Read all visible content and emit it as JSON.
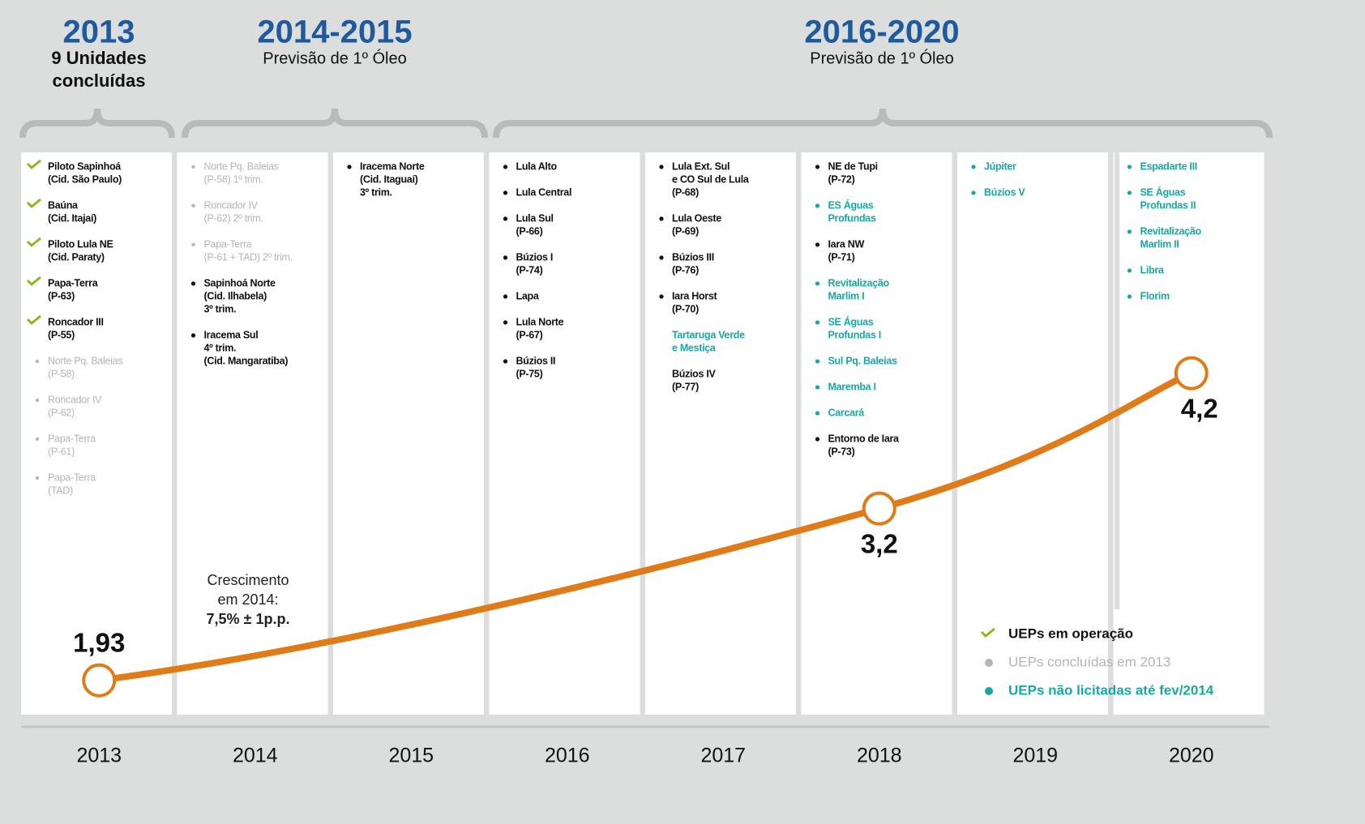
{
  "header": [
    {
      "title": "2013",
      "subtitle": [
        "9 Unidades",
        "concluídas"
      ]
    },
    {
      "title": "2014-2015",
      "subtitle": [
        "Previsão de 1º Óleo"
      ]
    },
    {
      "title": "2016-2020",
      "subtitle": [
        "Previsão de 1º Óleo"
      ]
    }
  ],
  "columns": [
    {
      "items": [
        {
          "lines": [
            "Piloto Sapinhoá",
            "(Cid. São Paulo)"
          ],
          "status": "operation"
        },
        {
          "lines": [
            "Baúna",
            "(Cid. Itajaí)"
          ],
          "status": "operation"
        },
        {
          "lines": [
            "Piloto Lula NE",
            "(Cid. Paraty)"
          ],
          "status": "operation"
        },
        {
          "lines": [
            "Papa-Terra",
            "(P-63)"
          ],
          "status": "operation"
        },
        {
          "lines": [
            "Roncador III",
            "(P-55)"
          ],
          "status": "operation"
        },
        {
          "lines": [
            "Norte Pq. Baleias",
            "(P-58)"
          ],
          "status": "concluded"
        },
        {
          "lines": [
            "Roncador IV",
            "(P-62)"
          ],
          "status": "concluded"
        },
        {
          "lines": [
            "Papa-Terra",
            "(P-61)"
          ],
          "status": "concluded"
        },
        {
          "lines": [
            "Papa-Terra",
            "(TAD)"
          ],
          "status": "concluded"
        }
      ]
    },
    {
      "items": [
        {
          "lines": [
            "Norte Pq. Baleias",
            "(P-58) 1º trim."
          ],
          "status": "concluded"
        },
        {
          "lines": [
            "Roncador IV",
            "(P-62) 2º trim."
          ],
          "status": "concluded"
        },
        {
          "lines": [
            "Papa-Terra",
            "(P-61 + TAD) 2º trim."
          ],
          "status": "concluded"
        },
        {
          "lines": [
            "Sapinhoá Norte",
            "(Cid. Ilhabela)",
            "3º trim."
          ],
          "status": "planned"
        },
        {
          "lines": [
            "Iracema Sul",
            "4º trim.",
            "(Cid. Mangaratiba)"
          ],
          "status": "planned"
        }
      ]
    },
    {
      "items": [
        {
          "lines": [
            "Iracema Norte",
            "(Cid. Itaguaí)",
            "3º trim."
          ],
          "status": "planned"
        }
      ]
    },
    {
      "items": [
        {
          "lines": [
            "Lula Alto"
          ],
          "status": "planned"
        },
        {
          "lines": [
            "Lula Central"
          ],
          "status": "planned"
        },
        {
          "lines": [
            "Lula Sul",
            "(P-66)"
          ],
          "status": "planned"
        },
        {
          "lines": [
            "Búzios I",
            "(P-74)"
          ],
          "status": "planned"
        },
        {
          "lines": [
            "Lapa"
          ],
          "status": "planned"
        },
        {
          "lines": [
            "Lula Norte",
            "(P-67)"
          ],
          "status": "planned"
        },
        {
          "lines": [
            "Búzios II",
            "(P-75)"
          ],
          "status": "planned"
        }
      ]
    },
    {
      "items": [
        {
          "lines": [
            "Lula Ext. Sul",
            "e CO Sul de Lula",
            "(P-68)"
          ],
          "status": "planned"
        },
        {
          "lines": [
            "Lula Oeste",
            "(P-69)"
          ],
          "status": "planned"
        },
        {
          "lines": [
            "Búzios III",
            "(P-76)"
          ],
          "status": "planned"
        },
        {
          "lines": [
            "Iara Horst",
            "(P-70)"
          ],
          "status": "planned"
        },
        {
          "lines": [
            "Tartaruga Verde",
            "e Mestiça"
          ],
          "status": "not_bid",
          "bullet": false
        },
        {
          "lines": [
            "Búzios IV",
            "(P-77)"
          ],
          "status": "planned",
          "bullet": false
        }
      ]
    },
    {
      "items": [
        {
          "lines": [
            "NE de Tupi",
            "(P-72)"
          ],
          "status": "planned"
        },
        {
          "lines": [
            "ES Águas",
            "Profundas"
          ],
          "status": "not_bid"
        },
        {
          "lines": [
            "Iara NW",
            "(P-71)"
          ],
          "status": "planned"
        },
        {
          "lines": [
            "Revitalização",
            "Marlim I"
          ],
          "status": "not_bid"
        },
        {
          "lines": [
            "SE Águas",
            "Profundas I"
          ],
          "status": "not_bid"
        },
        {
          "lines": [
            "Sul Pq. Baleias"
          ],
          "status": "not_bid"
        },
        {
          "lines": [
            "Maremba I"
          ],
          "status": "not_bid"
        },
        {
          "lines": [
            "Carcará"
          ],
          "status": "not_bid"
        },
        {
          "lines": [
            "Entorno de Iara",
            "(P-73)"
          ],
          "status": "planned"
        }
      ]
    },
    {
      "items": [
        {
          "lines": [
            "Júpiter"
          ],
          "status": "not_bid"
        },
        {
          "lines": [
            "Búzios V"
          ],
          "status": "not_bid"
        }
      ]
    },
    {
      "items": [
        {
          "lines": [
            "Espadarte III"
          ],
          "status": "not_bid"
        },
        {
          "lines": [
            "SE Águas",
            "Profundas II"
          ],
          "status": "not_bid"
        },
        {
          "lines": [
            "Revitalização",
            "Marlim II"
          ],
          "status": "not_bid"
        },
        {
          "lines": [
            "Libra"
          ],
          "status": "not_bid"
        },
        {
          "lines": [
            "Florim"
          ],
          "status": "not_bid"
        }
      ]
    }
  ],
  "annotation": [
    "Crescimento",
    "em 2014:",
    "7,5% ± 1p.p."
  ],
  "legend": [
    {
      "label": "UEPs em operação",
      "status": "operation"
    },
    {
      "label": "UEPs concluídas em 2013",
      "status": "concluded"
    },
    {
      "label": "UEPs não licitadas até fev/2014",
      "status": "not_bid"
    }
  ],
  "chart_data": {
    "type": "line",
    "x": [
      2013,
      2018,
      2020
    ],
    "values": [
      1.93,
      3.2,
      4.2
    ],
    "value_labels": [
      "1,93",
      "3,2",
      "4,2"
    ],
    "color": "#e07b1a",
    "xlim": [
      2012.5,
      2020.5
    ],
    "xticks": [
      2013,
      2014,
      2015,
      2016,
      2017,
      2018,
      2019,
      2020
    ],
    "ylim": [
      1,
      6
    ]
  }
}
